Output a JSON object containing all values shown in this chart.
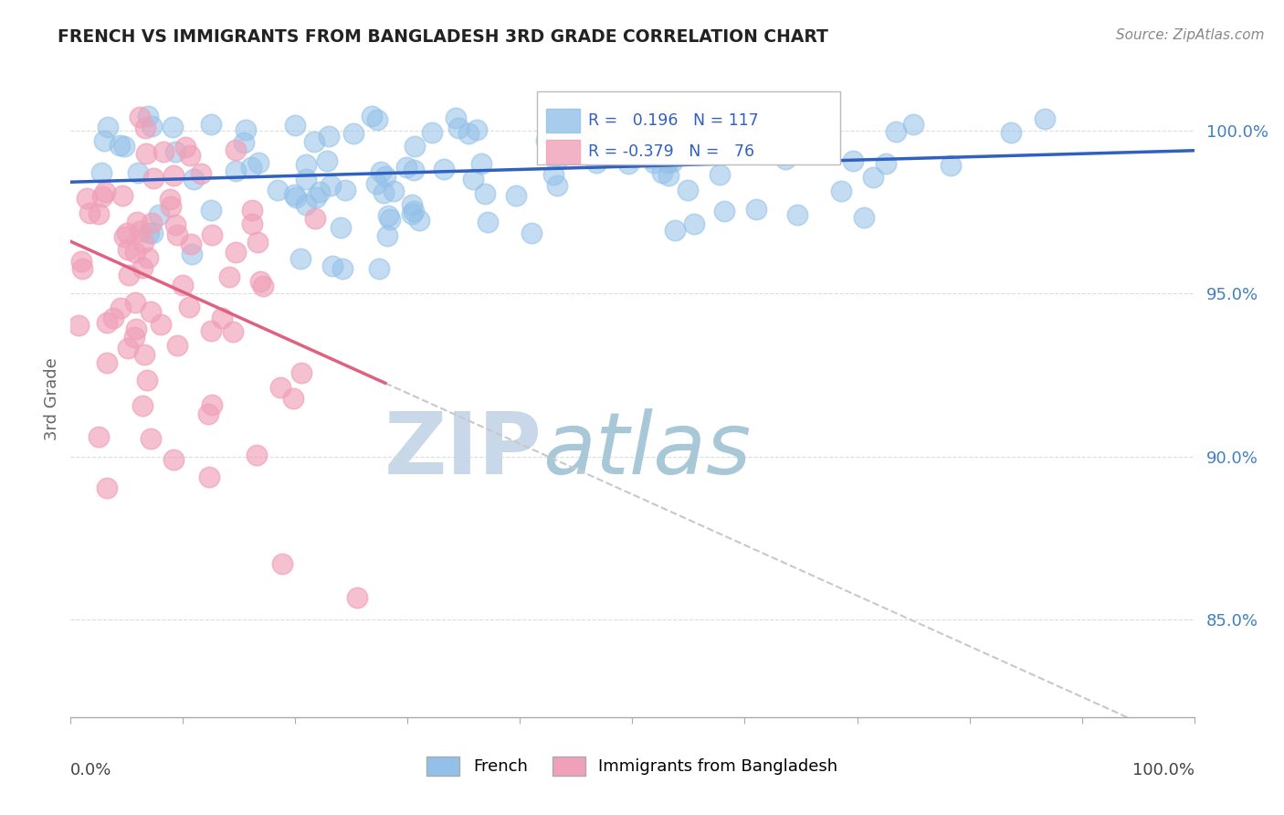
{
  "title": "FRENCH VS IMMIGRANTS FROM BANGLADESH 3RD GRADE CORRELATION CHART",
  "source": "Source: ZipAtlas.com",
  "ylabel": "3rd Grade",
  "ytick_values": [
    0.85,
    0.9,
    0.95,
    1.0
  ],
  "legend_labels": [
    "French",
    "Immigrants from Bangladesh"
  ],
  "R_french": 0.196,
  "N_french": 117,
  "R_bangladesh": -0.379,
  "N_bangladesh": 76,
  "blue_color": "#92C0E8",
  "pink_color": "#F0A0B8",
  "trend_blue": "#3060C0",
  "trend_pink": "#E06080",
  "trend_dashed_color": "#C8C8C8",
  "seed": 42,
  "background_color": "#FFFFFF",
  "grid_color": "#DDDDDD",
  "watermark_zip_color": "#C8D8E8",
  "watermark_atlas_color": "#A8C8D8",
  "ytick_color": "#4080C0",
  "ylabel_color": "#666666",
  "title_color": "#222222",
  "source_color": "#888888",
  "legend_text_color": "#3060C0"
}
